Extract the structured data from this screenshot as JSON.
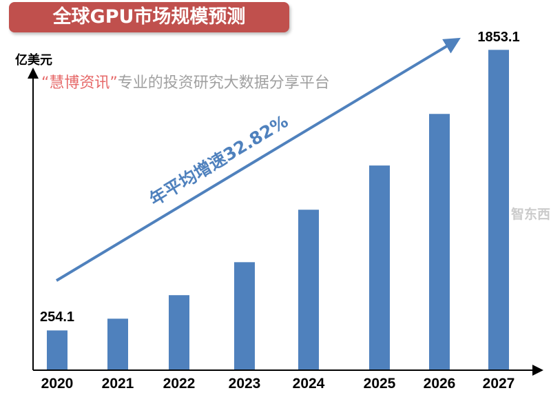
{
  "chart_data": {
    "type": "bar",
    "title": "全球GPU市场规模预测",
    "ylabel": "亿美元",
    "xlabel": "",
    "categories": [
      "2020",
      "2021",
      "2022",
      "2023",
      "2024",
      "2025",
      "2026",
      "2027"
    ],
    "values": [
      254.1,
      321,
      455,
      643,
      942,
      1194,
      1488,
      1853.1
    ],
    "data_labels": {
      "first": "254.1",
      "last": "1853.1"
    },
    "ylim": [
      0,
      1900
    ],
    "grid": false,
    "bar_color": "#4f81bd",
    "annotation": "年平均增速32.82%",
    "annotation_color": "#4f81bd"
  },
  "title_color": "#c0504d",
  "watermark": {
    "quoted": "“慧博资讯”",
    "text": "专业的投资研究大数据分享平台"
  },
  "logo_text": "智东西"
}
